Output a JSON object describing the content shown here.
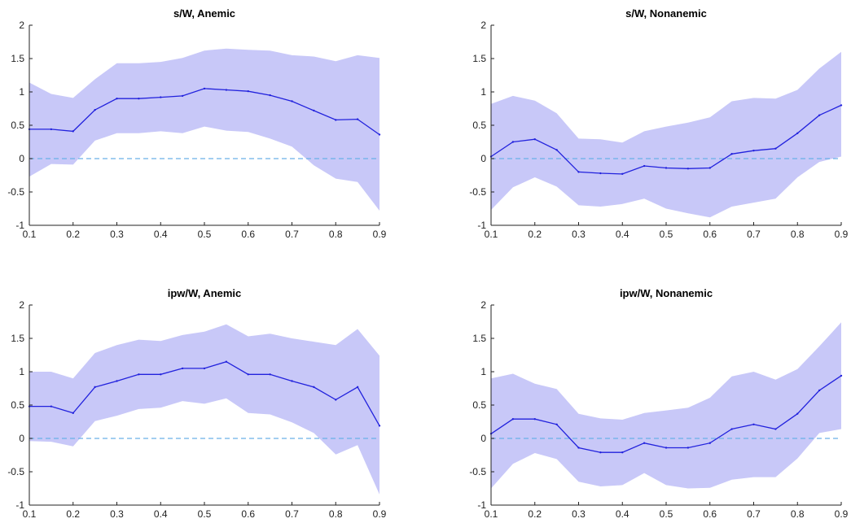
{
  "chart_data": [
    {
      "type": "line",
      "title": "s/W, Anemic",
      "xlabel": "",
      "ylabel": "",
      "xlim": [
        0.1,
        0.9
      ],
      "ylim": [
        -1,
        2
      ],
      "xticks": [
        "0.1",
        "0.2",
        "0.3",
        "0.4",
        "0.5",
        "0.6",
        "0.7",
        "0.8",
        "0.9"
      ],
      "yticks": [
        "-1",
        "-0.5",
        "0",
        "0.5",
        "1",
        "1.5",
        "2"
      ],
      "x": [
        0.1,
        0.15,
        0.2,
        0.25,
        0.3,
        0.35,
        0.4,
        0.45,
        0.5,
        0.55,
        0.6,
        0.65,
        0.7,
        0.75,
        0.8,
        0.85,
        0.9
      ],
      "y": [
        0.44,
        0.44,
        0.41,
        0.73,
        0.9,
        0.9,
        0.92,
        0.94,
        1.05,
        1.03,
        1.01,
        0.95,
        0.86,
        0.72,
        0.58,
        0.59,
        0.36
      ],
      "lower": [
        -0.27,
        -0.08,
        -0.09,
        0.27,
        0.38,
        0.38,
        0.41,
        0.38,
        0.48,
        0.42,
        0.4,
        0.3,
        0.18,
        -0.1,
        -0.3,
        -0.35,
        -0.78
      ],
      "upper": [
        1.14,
        0.97,
        0.91,
        1.19,
        1.43,
        1.43,
        1.45,
        1.51,
        1.62,
        1.65,
        1.63,
        1.62,
        1.55,
        1.53,
        1.46,
        1.55,
        1.51
      ],
      "reference_line": 0,
      "colors": {
        "line": "#2222dd",
        "band": "#c8c8f8",
        "reference": "#6ab0e8"
      }
    },
    {
      "type": "line",
      "title": "s/W, Nonanemic",
      "xlabel": "",
      "ylabel": "",
      "xlim": [
        0.1,
        0.9
      ],
      "ylim": [
        -1,
        2
      ],
      "xticks": [
        "0.1",
        "0.2",
        "0.3",
        "0.4",
        "0.5",
        "0.6",
        "0.7",
        "0.8",
        "0.9"
      ],
      "yticks": [
        "-1",
        "-0.5",
        "0",
        "0.5",
        "1",
        "1.5",
        "2"
      ],
      "x": [
        0.1,
        0.15,
        0.2,
        0.25,
        0.3,
        0.35,
        0.4,
        0.45,
        0.5,
        0.55,
        0.6,
        0.65,
        0.7,
        0.75,
        0.8,
        0.85,
        0.9
      ],
      "y": [
        0.03,
        0.25,
        0.29,
        0.13,
        -0.2,
        -0.22,
        -0.23,
        -0.11,
        -0.14,
        -0.15,
        -0.14,
        0.07,
        0.12,
        0.15,
        0.38,
        0.65,
        0.8
      ],
      "lower": [
        -0.77,
        -0.43,
        -0.28,
        -0.42,
        -0.7,
        -0.72,
        -0.68,
        -0.6,
        -0.75,
        -0.82,
        -0.88,
        -0.72,
        -0.66,
        -0.6,
        -0.28,
        -0.05,
        0.03
      ],
      "upper": [
        0.82,
        0.94,
        0.87,
        0.68,
        0.3,
        0.29,
        0.24,
        0.41,
        0.48,
        0.54,
        0.62,
        0.86,
        0.91,
        0.9,
        1.03,
        1.35,
        1.6
      ],
      "reference_line": 0,
      "colors": {
        "line": "#2222dd",
        "band": "#c8c8f8",
        "reference": "#6ab0e8"
      }
    },
    {
      "type": "line",
      "title": "ipw/W, Anemic",
      "xlabel": "",
      "ylabel": "",
      "xlim": [
        0.1,
        0.9
      ],
      "ylim": [
        -1,
        2
      ],
      "xticks": [
        "0.1",
        "0.2",
        "0.3",
        "0.4",
        "0.5",
        "0.6",
        "0.7",
        "0.8",
        "0.9"
      ],
      "yticks": [
        "-1",
        "-0.5",
        "0",
        "0.5",
        "1",
        "1.5",
        "2"
      ],
      "x": [
        0.1,
        0.15,
        0.2,
        0.25,
        0.3,
        0.35,
        0.4,
        0.45,
        0.5,
        0.55,
        0.6,
        0.65,
        0.7,
        0.75,
        0.8,
        0.85,
        0.9
      ],
      "y": [
        0.48,
        0.48,
        0.38,
        0.77,
        0.86,
        0.96,
        0.96,
        1.05,
        1.05,
        1.15,
        0.96,
        0.96,
        0.86,
        0.77,
        0.58,
        0.77,
        0.19
      ],
      "lower": [
        -0.04,
        -0.05,
        -0.12,
        0.26,
        0.34,
        0.44,
        0.46,
        0.56,
        0.52,
        0.6,
        0.38,
        0.36,
        0.24,
        0.08,
        -0.24,
        -0.1,
        -0.84
      ],
      "upper": [
        1.0,
        1.0,
        0.9,
        1.28,
        1.4,
        1.48,
        1.46,
        1.55,
        1.6,
        1.71,
        1.53,
        1.57,
        1.5,
        1.45,
        1.4,
        1.64,
        1.24
      ],
      "reference_line": 0,
      "colors": {
        "line": "#2222dd",
        "band": "#c8c8f8",
        "reference": "#6ab0e8"
      }
    },
    {
      "type": "line",
      "title": "ipw/W, Nonanemic",
      "xlabel": "",
      "ylabel": "",
      "xlim": [
        0.1,
        0.9
      ],
      "ylim": [
        -1,
        2
      ],
      "xticks": [
        "0.1",
        "0.2",
        "0.3",
        "0.4",
        "0.5",
        "0.6",
        "0.7",
        "0.8",
        "0.9"
      ],
      "yticks": [
        "-1",
        "-0.5",
        "0",
        "0.5",
        "1",
        "1.5",
        "2"
      ],
      "x": [
        0.1,
        0.15,
        0.2,
        0.25,
        0.3,
        0.35,
        0.4,
        0.45,
        0.5,
        0.55,
        0.6,
        0.65,
        0.7,
        0.75,
        0.8,
        0.85,
        0.9
      ],
      "y": [
        0.07,
        0.29,
        0.29,
        0.21,
        -0.14,
        -0.21,
        -0.21,
        -0.07,
        -0.14,
        -0.14,
        -0.07,
        0.14,
        0.21,
        0.14,
        0.37,
        0.72,
        0.94
      ],
      "lower": [
        -0.75,
        -0.38,
        -0.22,
        -0.31,
        -0.65,
        -0.72,
        -0.7,
        -0.52,
        -0.7,
        -0.75,
        -0.74,
        -0.62,
        -0.58,
        -0.58,
        -0.3,
        0.08,
        0.14
      ],
      "upper": [
        0.9,
        0.97,
        0.82,
        0.74,
        0.37,
        0.3,
        0.28,
        0.38,
        0.42,
        0.46,
        0.61,
        0.93,
        1.0,
        0.88,
        1.04,
        1.38,
        1.74
      ],
      "reference_line": 0,
      "colors": {
        "line": "#2222dd",
        "band": "#c8c8f8",
        "reference": "#6ab0e8"
      }
    }
  ]
}
